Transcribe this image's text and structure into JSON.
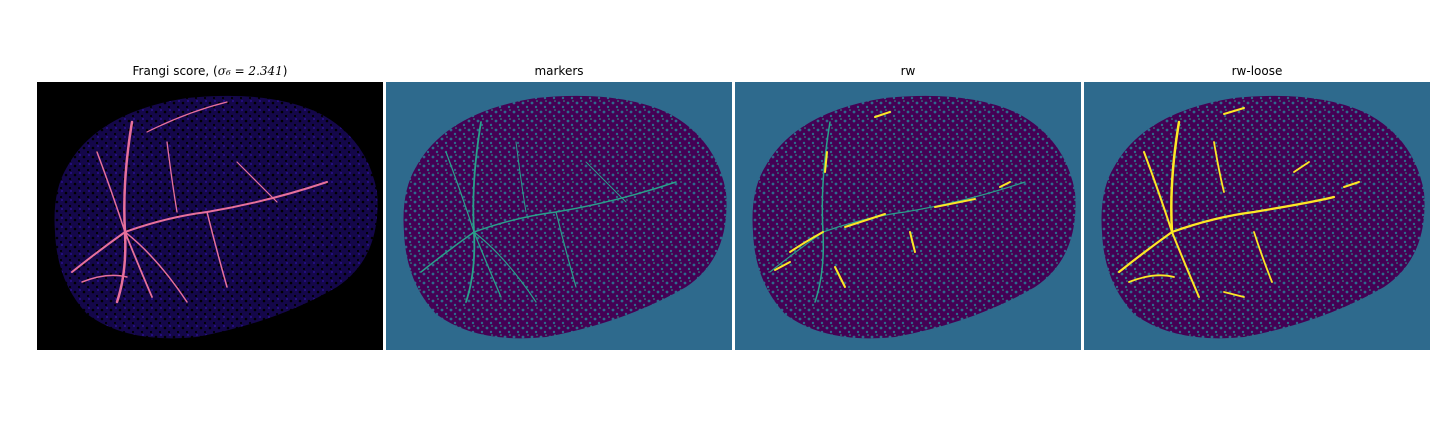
{
  "figure": {
    "panels": [
      {
        "id": "frangi",
        "title_prefix": "Frangi score, (",
        "title_math": "σ₆ = 2.341",
        "title_suffix": ")",
        "background": "#000000",
        "tissue": "#1d0b6e",
        "vessel": "#e7709b"
      },
      {
        "id": "markers",
        "title": "markers",
        "background": "#2e6a8d",
        "tissue": "#440154",
        "vessel": "#2aa08a"
      },
      {
        "id": "rw",
        "title": "rw",
        "background": "#2e6a8d",
        "tissue": "#440154",
        "vessel": "#fde725"
      },
      {
        "id": "rw-loose",
        "title": "rw-loose",
        "background": "#2e6a8d",
        "tissue": "#440154",
        "vessel": "#fde725"
      }
    ]
  }
}
